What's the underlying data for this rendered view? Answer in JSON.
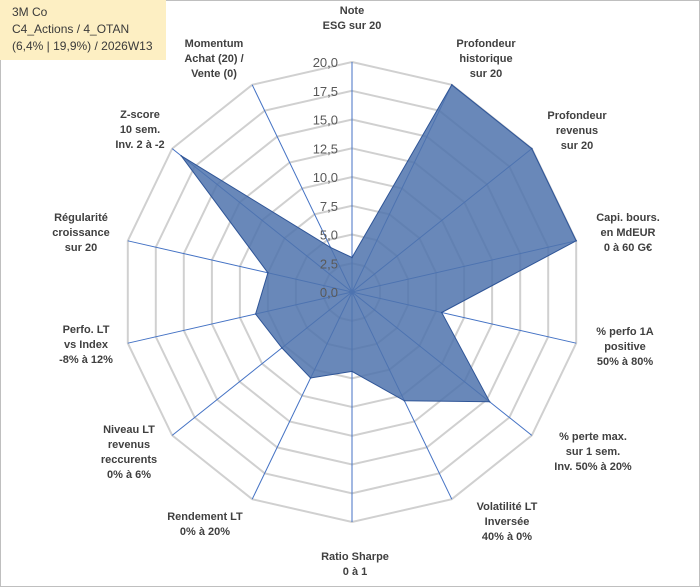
{
  "info_box": {
    "line1": "3M Co",
    "line2": "C4_Actions / 4_OTAN",
    "line3": "(6,4% | 19,9%) / 2026W13"
  },
  "colors": {
    "grid": "#d0d0d0",
    "spoke": "#4472c4",
    "fill": "#4f73ad",
    "stroke": "#2f5597",
    "tick_text": "#595959",
    "label_text": "#404040",
    "info_bg": "#fdefc3"
  },
  "chart_data": {
    "type": "radar",
    "title": "",
    "rlim": [
      0,
      20
    ],
    "ticks": [
      "0,0",
      "2,5",
      "5,0",
      "7,5",
      "10,0",
      "12,5",
      "15,0",
      "17,5",
      "20,0"
    ],
    "tick_values": [
      0,
      2.5,
      5,
      7.5,
      10,
      12.5,
      15,
      17.5,
      20
    ],
    "grid": true,
    "legend": "none",
    "axes": [
      {
        "lines": [
          "Note",
          "ESG sur 20"
        ]
      },
      {
        "lines": [
          "Profondeur",
          "historique",
          "sur 20"
        ]
      },
      {
        "lines": [
          "Profondeur",
          "revenus",
          "sur 20"
        ]
      },
      {
        "lines": [
          "Capi. bours.",
          "en MdEUR",
          "0 à 60 G€"
        ]
      },
      {
        "lines": [
          "% perfo 1A",
          "positive",
          "50% à 80%"
        ]
      },
      {
        "lines": [
          "% perte max.",
          "sur 1 sem.",
          "Inv. 50% à 20%"
        ]
      },
      {
        "lines": [
          "Volatilité LT",
          "Inversée",
          "40% à 0%"
        ]
      },
      {
        "lines": [
          "Ratio Sharpe",
          "0 à 1"
        ]
      },
      {
        "lines": [
          "Rendement LT",
          "0% à 20%"
        ]
      },
      {
        "lines": [
          "Niveau LT",
          "revenus",
          "reccurents",
          "0% à 6%"
        ]
      },
      {
        "lines": [
          "Perfo. LT",
          "vs Index",
          "-8% à 12%"
        ]
      },
      {
        "lines": [
          "Régularité",
          "croissance",
          "sur 20"
        ]
      },
      {
        "lines": [
          "Z-score",
          "10 sem.",
          "Inv. 2 à -2"
        ]
      },
      {
        "lines": [
          "Momentum",
          "Achat (20) /",
          "Vente (0)"
        ]
      }
    ],
    "series": [
      {
        "name": "3M Co",
        "values": [
          3,
          20,
          20,
          20,
          8,
          15.3,
          10.5,
          6.9,
          8.3,
          7.8,
          8.6,
          7.5,
          19,
          4.3
        ]
      }
    ]
  }
}
